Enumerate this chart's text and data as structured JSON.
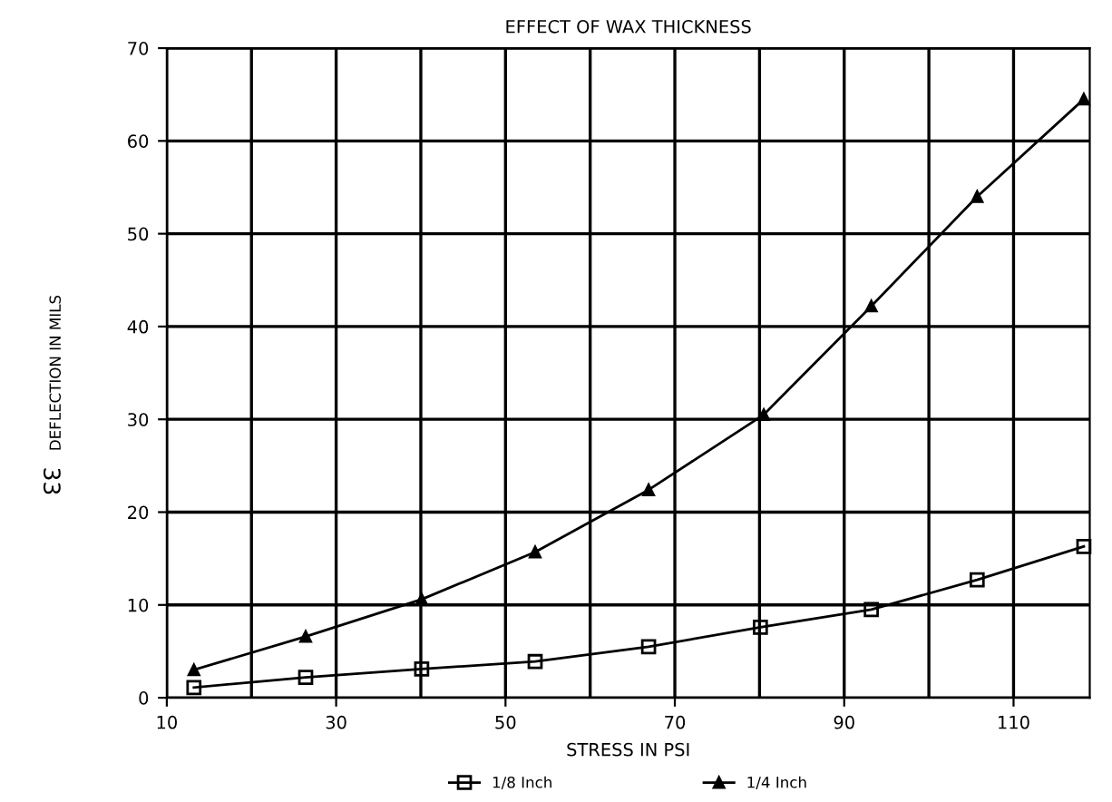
{
  "chart_data": {
    "type": "line",
    "title": "EFFECT OF WAX THICKNESS",
    "xlabel": "STRESS IN PSI",
    "ylabel": "DEFLECTION IN MILS",
    "annotations": [
      "33"
    ],
    "series": [
      {
        "name": "1/8 Inch",
        "color": "#000000",
        "marker": "square",
        "x": [
          13.2,
          26.4,
          40.1,
          53.5,
          66.9,
          80.1,
          93.2,
          105.7,
          118.3
        ],
        "values": [
          1.1,
          2.2,
          3.1,
          3.9,
          5.5,
          7.6,
          9.5,
          12.7,
          16.3
        ]
      },
      {
        "name": "1/4 Inch",
        "color": "#000000",
        "marker": "triangle",
        "x": [
          13.2,
          26.4,
          40.1,
          53.5,
          66.9,
          80.5,
          93.2,
          105.7,
          118.3
        ],
        "values": [
          3.0,
          6.6,
          10.6,
          15.7,
          22.4,
          30.5,
          42.2,
          54.0,
          64.5
        ]
      }
    ],
    "xlim": [
      10,
      119
    ],
    "xticks": [
      10,
      30,
      50,
      70,
      90,
      110
    ],
    "ylim": [
      0,
      70
    ],
    "yticks": [
      0,
      10,
      20,
      30,
      40,
      50,
      60,
      70
    ],
    "grid": true,
    "legend": "bottom",
    "line_style": "solid"
  }
}
